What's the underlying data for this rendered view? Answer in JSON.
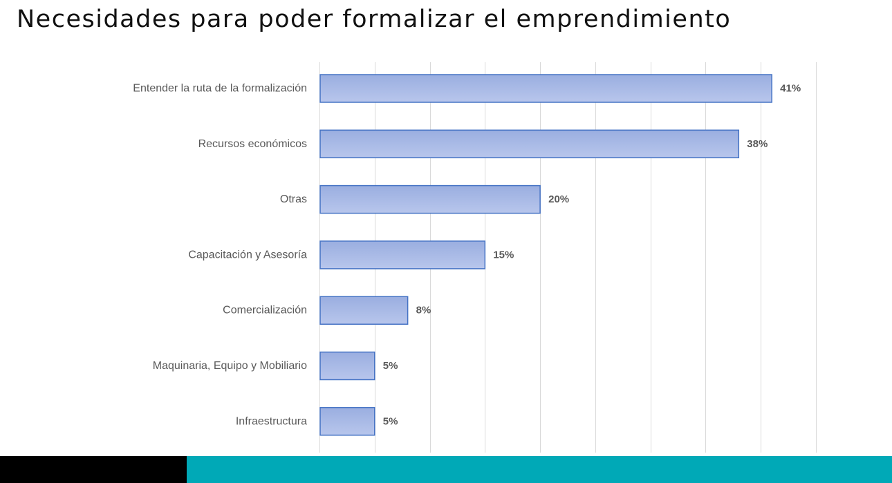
{
  "title": "Necesidades para poder formalizar el emprendimiento",
  "colors": {
    "bar_fill_top": "#9aaee0",
    "bar_fill_bottom": "#b8c6ec",
    "bar_stroke": "#4472c4",
    "gridline": "#d9d9d9",
    "label_text": "#595959",
    "footer_left": "#000000",
    "footer_right": "#00a9b7"
  },
  "chart_data": {
    "type": "bar",
    "orientation": "horizontal",
    "title": "",
    "xlabel": "",
    "ylabel": "",
    "categories": [
      "Entender la ruta de la formalización",
      "Recursos económicos",
      "Otras",
      "Capacitación y Asesoría",
      "Comercialización",
      "Maquinaria, Equipo y Mobiliario",
      "Infraestructura"
    ],
    "values": [
      41,
      38,
      20,
      15,
      8,
      5,
      5
    ],
    "value_labels": [
      "41%",
      "38%",
      "20%",
      "15%",
      "8%",
      "5%",
      "5%"
    ],
    "xlim": [
      0,
      45
    ],
    "x_gridline_step": 5,
    "grid": true,
    "legend": "none"
  }
}
